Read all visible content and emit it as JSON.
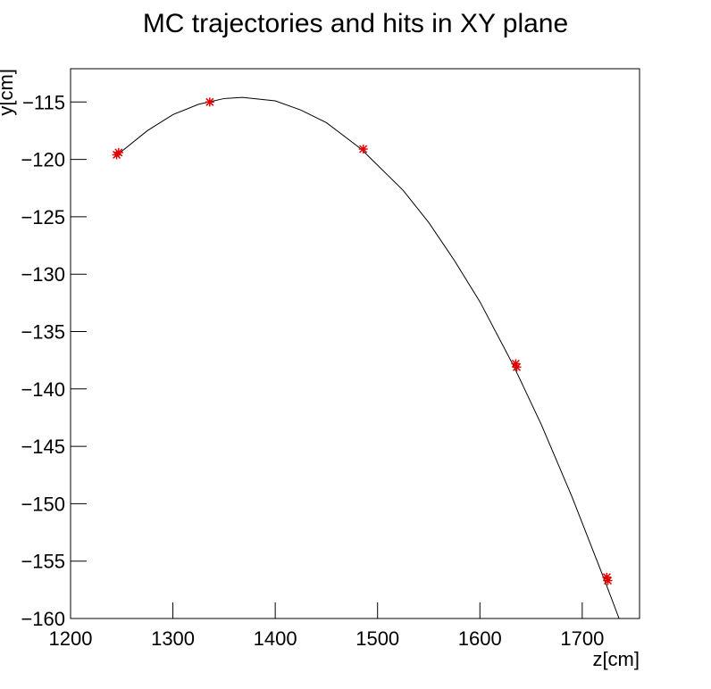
{
  "chart_data": {
    "type": "line",
    "title": "MC trajectories and hits in XY plane",
    "x_label": "z[cm]",
    "y_label": "y[cm]",
    "xlim": [
      1200,
      1756
    ],
    "ylim": [
      -160,
      -112.1
    ],
    "xticks": [
      1200,
      1300,
      1400,
      1500,
      1600,
      1700
    ],
    "yticks": [
      {
        "value": -115,
        "label": "−115"
      },
      {
        "value": -120,
        "label": "−120"
      },
      {
        "value": -125,
        "label": "−125"
      },
      {
        "value": -130,
        "label": "−130"
      },
      {
        "value": -135,
        "label": "−135"
      },
      {
        "value": -140,
        "label": "−140"
      },
      {
        "value": -145,
        "label": "−145"
      },
      {
        "value": -150,
        "label": "−150"
      },
      {
        "value": -155,
        "label": "−155"
      },
      {
        "value": -160,
        "label": "−160"
      }
    ],
    "series": [
      {
        "color": "#000000",
        "marker": "none",
        "x": [
          1243,
          1275,
          1300,
          1325,
          1350,
          1368,
          1400,
          1425,
          1450,
          1484,
          1525,
          1550,
          1575,
          1600,
          1633,
          1660,
          1690,
          1722,
          1736
        ],
        "values": [
          -119.8,
          -117.5,
          -116.1,
          -115.2,
          -114.7,
          -114.6,
          -114.9,
          -115.7,
          -116.8,
          -119.1,
          -122.7,
          -125.5,
          -128.8,
          -132.4,
          -138.0,
          -143.1,
          -149.4,
          -156.7,
          -160.0
        ]
      },
      {
        "color": "#e00000",
        "marker": "star",
        "x": [
          1245,
          1247,
          1336,
          1486,
          1635,
          1636,
          1724,
          1725
        ],
        "values": [
          -119.6,
          -119.4,
          -115.0,
          -119.1,
          -137.8,
          -138.1,
          -156.4,
          -156.7
        ]
      }
    ]
  }
}
